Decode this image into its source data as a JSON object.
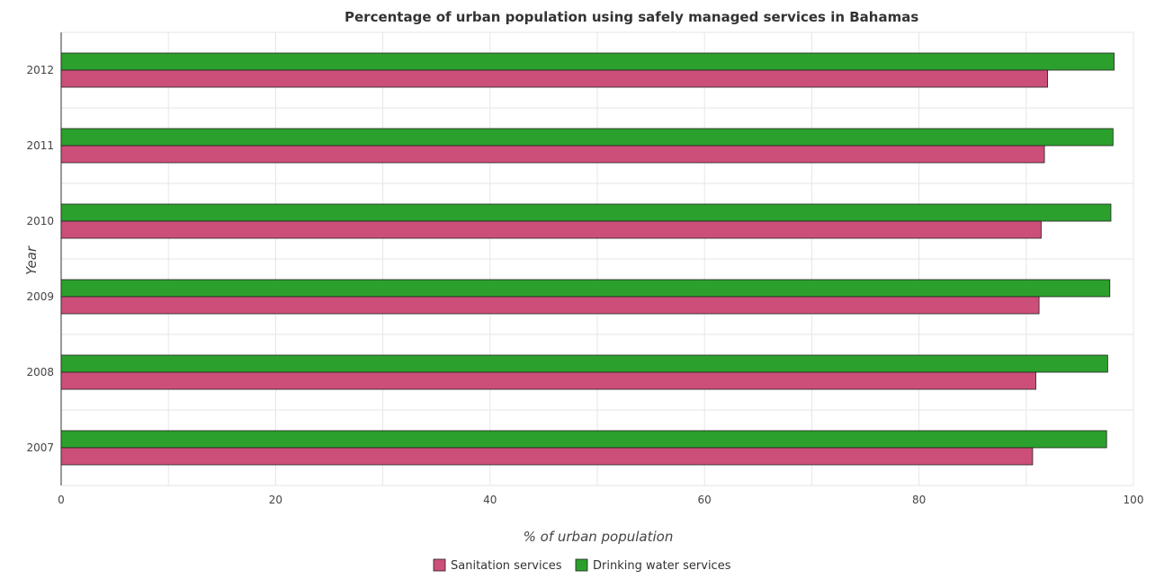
{
  "chart_data": {
    "type": "bar",
    "orientation": "horizontal",
    "title": "Percentage of urban population using safely managed services in Bahamas",
    "xlabel": "% of urban population",
    "ylabel": "Year",
    "categories": [
      "2007",
      "2008",
      "2009",
      "2010",
      "2011",
      "2012"
    ],
    "series": [
      {
        "name": "Sanitation services",
        "color": "#cc4f7a",
        "values": [
          90.6,
          90.9,
          91.2,
          91.4,
          91.7,
          92.0
        ]
      },
      {
        "name": "Drinking water services",
        "color": "#2ca02c",
        "values": [
          97.5,
          97.6,
          97.8,
          97.9,
          98.1,
          98.2
        ]
      }
    ],
    "xlim": [
      0,
      100
    ],
    "xticks": [
      "0",
      "20",
      "40",
      "60",
      "80",
      "100"
    ],
    "grid": true,
    "legend_position": "bottom"
  }
}
